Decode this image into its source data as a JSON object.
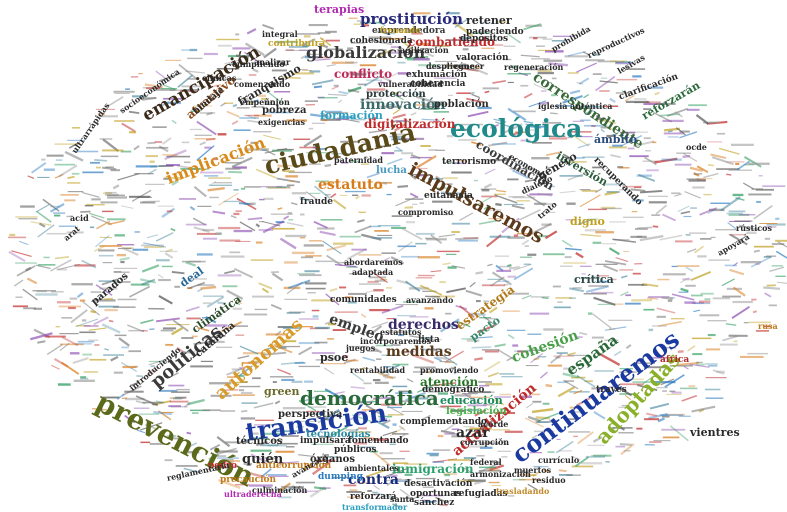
{
  "words": [
    {
      "text": "ecológica",
      "color": "#1f8a8a"
    },
    {
      "text": "ciudadanía",
      "color": "#5a4a1a"
    },
    {
      "text": "prevención",
      "color": "#5a6a1a"
    },
    {
      "text": "transición",
      "color": "#1a3aa0"
    },
    {
      "text": "continuaremos",
      "color": "#1a3aa0"
    },
    {
      "text": "impulsaremos",
      "color": "#5a3a1a"
    },
    {
      "text": "globalización",
      "color": "#3a3a3a"
    },
    {
      "text": "emancipación",
      "color": "#3a2a1a"
    },
    {
      "text": "democrática",
      "color": "#2a6a3a"
    },
    {
      "text": "implicación",
      "color": "#d88a1a"
    },
    {
      "text": "correspondiente",
      "color": "#3a6a3a"
    },
    {
      "text": "prostitución",
      "color": "#2a2a7a"
    },
    {
      "text": "autónomas",
      "color": "#d89a2a"
    },
    {
      "text": "adoptadas",
      "color": "#8ab02a"
    },
    {
      "text": "políticas",
      "color": "#3a3a3a"
    },
    {
      "text": "estatuto",
      "color": "#d87a1a"
    },
    {
      "text": "innovación",
      "color": "#3a6a6a"
    },
    {
      "text": "derechos",
      "color": "#3a2a6a"
    },
    {
      "text": "actualización",
      "color": "#c02a2a"
    },
    {
      "text": "combatiendo",
      "color": "#c02a2a"
    },
    {
      "text": "digitalización",
      "color": "#c02a2a"
    },
    {
      "text": "conflicto",
      "color": "#c02a5a"
    },
    {
      "text": "españa",
      "color": "#2a6a3a"
    },
    {
      "text": "cohesión",
      "color": "#4aa04a"
    },
    {
      "text": "atención",
      "color": "#2a7a2a"
    },
    {
      "text": "inmigración",
      "color": "#2aa06a"
    },
    {
      "text": "empleo",
      "color": "#3a3a3a"
    },
    {
      "text": "medidas",
      "color": "#5a3a1a"
    },
    {
      "text": "contra",
      "color": "#1a2a7a"
    },
    {
      "text": "azar",
      "color": "#2a2a2a"
    },
    {
      "text": "quién",
      "color": "#2a2a2a"
    },
    {
      "text": "green",
      "color": "#6a6a2a"
    },
    {
      "text": "educación",
      "color": "#1a8a5a"
    },
    {
      "text": "terapias",
      "color": "#b02ab0"
    },
    {
      "text": "retener",
      "color": "#2a2a2a"
    },
    {
      "text": "estrategia",
      "color": "#b07a1a"
    },
    {
      "text": "coordinación",
      "color": "#3a3a3a"
    },
    {
      "text": "ámbito",
      "color": "#2a4a7a"
    },
    {
      "text": "reforzarán",
      "color": "#2a6a3a"
    },
    {
      "text": "atractivo",
      "color": "#8a4a1a"
    },
    {
      "text": "franquismo",
      "color": "#2a2a2a"
    },
    {
      "text": "formación",
      "color": "#2aa0c0"
    },
    {
      "text": "protección",
      "color": "#2a3a3a"
    },
    {
      "text": "pobreza",
      "color": "#2a2a2a"
    },
    {
      "text": "población",
      "color": "#2a2a2a"
    },
    {
      "text": "lucha",
      "color": "#4a9ac0"
    },
    {
      "text": "inversión",
      "color": "#2a5a3a"
    },
    {
      "text": "género",
      "color": "#2a2a2a"
    },
    {
      "text": "digno",
      "color": "#c0a020"
    },
    {
      "text": "crítica",
      "color": "#2a4a4a"
    },
    {
      "text": "deal",
      "color": "#2a6a9a"
    },
    {
      "text": "climática",
      "color": "#2a4a2a"
    },
    {
      "text": "pacto",
      "color": "#3a8a6a"
    },
    {
      "text": "psoe",
      "color": "#2a2a2a"
    },
    {
      "text": "vientres",
      "color": "#2a2a2a"
    },
    {
      "text": "técnicos",
      "color": "#2a2a2a"
    },
    {
      "text": "perspectiva",
      "color": "#2a2a2a"
    },
    {
      "text": "tecnologías",
      "color": "#2a8aa0"
    },
    {
      "text": "legislación",
      "color": "#4ab04a"
    },
    {
      "text": "órganos",
      "color": "#2a2a2a"
    },
    {
      "text": "cataluña",
      "color": "#2a2a2a"
    },
    {
      "text": "emprendedora",
      "color": "#3a3a3a"
    },
    {
      "text": "cohesionada",
      "color": "#2a2a2a"
    },
    {
      "text": "depósitos",
      "color": "#2a2a2a"
    },
    {
      "text": "padeciendo",
      "color": "#2a2a2a"
    },
    {
      "text": "valoración",
      "color": "#2a2a2a"
    },
    {
      "text": "exhumación",
      "color": "#2a2a2a"
    },
    {
      "text": "coherencia",
      "color": "#2a2a2a"
    },
    {
      "text": "terrorismo",
      "color": "#2a2a2a"
    },
    {
      "text": "eutanasia",
      "color": "#2a2a2a"
    },
    {
      "text": "fraude",
      "color": "#2a2a2a"
    },
    {
      "text": "paternidad",
      "color": "#2a2a2a"
    },
    {
      "text": "abordaremos",
      "color": "#2a2a2a"
    },
    {
      "text": "rentabilidad",
      "color": "#2a2a2a"
    },
    {
      "text": "públicos",
      "color": "#2a2a2a"
    },
    {
      "text": "comunidades",
      "color": "#2a2a2a"
    },
    {
      "text": "incorporaremos",
      "color": "#2a2a2a"
    },
    {
      "text": "complementando",
      "color": "#2a2a2a"
    },
    {
      "text": "demográfico",
      "color": "#2a2a2a"
    },
    {
      "text": "lista",
      "color": "#2a2a2a"
    },
    {
      "text": "fomentando",
      "color": "#2a2a2a"
    },
    {
      "text": "impulsará",
      "color": "#2a2a2a"
    },
    {
      "text": "desactivación",
      "color": "#2a2a2a"
    },
    {
      "text": "oportunas",
      "color": "#2a2a2a"
    },
    {
      "text": "refugiadas",
      "color": "#2a2a2a"
    },
    {
      "text": "reforzará",
      "color": "#2a2a2a"
    },
    {
      "text": "sánchez",
      "color": "#2a2a2a"
    },
    {
      "text": "transformador",
      "color": "#2aa0c0"
    },
    {
      "text": "trasladando",
      "color": "#c08a2a"
    },
    {
      "text": "pedro",
      "color": "#c02a2a"
    },
    {
      "text": "anticorrupción",
      "color": "#c07a1a"
    },
    {
      "text": "precaución",
      "color": "#c07a1a"
    },
    {
      "text": "dumping",
      "color": "#2a7ac0"
    },
    {
      "text": "culminación",
      "color": "#2a2a2a"
    },
    {
      "text": "ultraderecha",
      "color": "#b02ab0"
    },
    {
      "text": "federal",
      "color": "#2a2a2a"
    },
    {
      "text": "través",
      "color": "#2a2a2a"
    },
    {
      "text": "áfrica",
      "color": "#b02a2a"
    },
    {
      "text": "reglamentaria",
      "color": "#2a2a2a"
    },
    {
      "text": "comenzando",
      "color": "#2a2a2a"
    },
    {
      "text": "analizar",
      "color": "#2a2a2a"
    },
    {
      "text": "clínicas",
      "color": "#2a2a2a"
    },
    {
      "text": "unión",
      "color": "#2a2a2a"
    },
    {
      "text": "exigencias",
      "color": "#2a2a2a"
    },
    {
      "text": "agilización",
      "color": "#2a2a2a"
    },
    {
      "text": "cáncer",
      "color": "#2a2a2a"
    },
    {
      "text": "regeneración",
      "color": "#2a2a2a"
    },
    {
      "text": "iglesia",
      "color": "#2a2a2a"
    },
    {
      "text": "auténtica",
      "color": "#2a2a2a"
    },
    {
      "text": "recuperando",
      "color": "#2a2a2a"
    },
    {
      "text": "clarificación",
      "color": "#2a2a2a"
    },
    {
      "text": "prohibida",
      "color": "#2a2a2a"
    },
    {
      "text": "reproductivos",
      "color": "#2a2a2a"
    },
    {
      "text": "lesivas",
      "color": "#2a2a2a"
    },
    {
      "text": "ocde",
      "color": "#2a2a2a"
    },
    {
      "text": "rústicos",
      "color": "#2a2a2a"
    },
    {
      "text": "rusa",
      "color": "#c07a1a"
    },
    {
      "text": "apoyará",
      "color": "#2a2a2a"
    },
    {
      "text": "parados",
      "color": "#2a2a2a"
    },
    {
      "text": "arat",
      "color": "#2a2a2a"
    },
    {
      "text": "acid",
      "color": "#2a2a2a"
    },
    {
      "text": "vulnerabilidad",
      "color": "#2a2a2a"
    },
    {
      "text": "compromiso",
      "color": "#2a2a2a"
    },
    {
      "text": "avanzando",
      "color": "#2a2a2a"
    },
    {
      "text": "adaptada",
      "color": "#2a2a2a"
    },
    {
      "text": "juegos",
      "color": "#2a2a2a"
    },
    {
      "text": "estatutos",
      "color": "#2a2a2a"
    },
    {
      "text": "promoviendo",
      "color": "#2a2a2a"
    },
    {
      "text": "frenando",
      "color": "#c0a020"
    },
    {
      "text": "contribuirá",
      "color": "#c0a020"
    },
    {
      "text": "cumpliendo",
      "color": "#2a2a2a"
    },
    {
      "text": "integral",
      "color": "#2a2a2a"
    },
    {
      "text": "ultrarrápidas",
      "color": "#2a2a2a"
    },
    {
      "text": "socioeconómica",
      "color": "#2a2a2a"
    },
    {
      "text": "bindaje",
      "color": "#2a2a2a"
    },
    {
      "text": "economía",
      "color": "#2a2a2a"
    },
    {
      "text": "dialogo",
      "color": "#2a2a2a"
    },
    {
      "text": "despliegue",
      "color": "#2a2a2a"
    },
    {
      "text": "trato",
      "color": "#2a2a2a"
    },
    {
      "text": "introduciendo",
      "color": "#2a2a2a"
    },
    {
      "text": "avanzará",
      "color": "#2a2a2a"
    },
    {
      "text": "ambientales",
      "color": "#2a2a2a"
    },
    {
      "text": "corrupción",
      "color": "#2a2a2a"
    },
    {
      "text": "currículo",
      "color": "#2a2a2a"
    },
    {
      "text": "residuo",
      "color": "#2a2a2a"
    },
    {
      "text": "muertos",
      "color": "#2a2a2a"
    },
    {
      "text": "santa",
      "color": "#2a2a2a"
    },
    {
      "text": "empeño",
      "color": "#2a2a2a"
    },
    {
      "text": "armonización",
      "color": "#2a2a2a"
    },
    {
      "text": "acorde",
      "color": "#2a2a2a"
    }
  ]
}
